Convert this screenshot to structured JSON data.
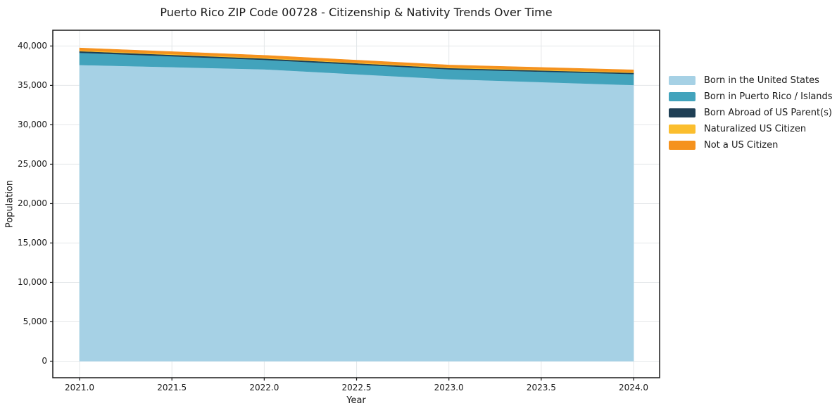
{
  "chart_data": {
    "type": "area",
    "stacked": true,
    "title": "Puerto Rico ZIP Code 00728 - Citizenship & Nativity Trends Over Time",
    "xlabel": "Year",
    "ylabel": "Population",
    "x": [
      2021,
      2022,
      2023,
      2024
    ],
    "series": [
      {
        "name": "Born in the United States",
        "color": "#A6D1E5",
        "values": [
          37600,
          37050,
          35800,
          35050
        ]
      },
      {
        "name": "Born in Puerto Rico / Islands",
        "color": "#42A3BC",
        "values": [
          1550,
          1200,
          1250,
          1400
        ]
      },
      {
        "name": "Born Abroad of US Parent(s)",
        "color": "#1F3F55",
        "values": [
          200,
          170,
          160,
          150
        ]
      },
      {
        "name": "Naturalized US Citizen",
        "color": "#FBBE2E",
        "values": [
          100,
          100,
          100,
          100
        ]
      },
      {
        "name": "Not a US Citizen",
        "color": "#F5921E",
        "values": [
          300,
          300,
          280,
          270
        ]
      }
    ],
    "x_ticks": [
      2021.0,
      2021.5,
      2022.0,
      2022.5,
      2023.0,
      2023.5,
      2024.0
    ],
    "x_tick_labels": [
      "2021.0",
      "2021.5",
      "2022.0",
      "2022.5",
      "2023.0",
      "2023.5",
      "2024.0"
    ],
    "y_ticks": [
      0,
      5000,
      10000,
      15000,
      20000,
      25000,
      30000,
      35000,
      40000
    ],
    "y_tick_labels": [
      "0",
      "5,000",
      "10,000",
      "15,000",
      "20,000",
      "25,000",
      "30,000",
      "35,000",
      "40,000"
    ],
    "xlim": [
      2020.855,
      2024.141
    ],
    "ylim": [
      -2100,
      42000
    ],
    "grid": true,
    "grid_color": "#e4e7e9",
    "spine_color": "#1a1a1a",
    "legend_position": "outside-right-top"
  }
}
